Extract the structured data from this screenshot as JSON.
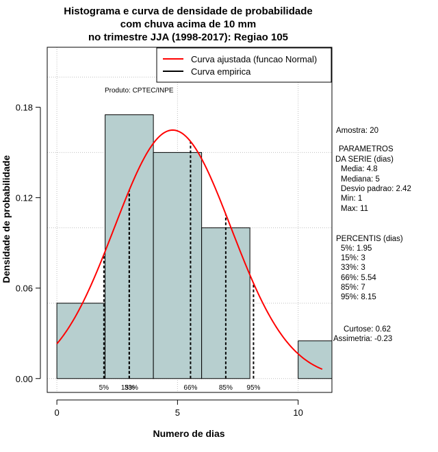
{
  "chart_data": {
    "type": "histogram",
    "title": [
      "Histograma e curva de densidade de probabilidade",
      "com chuva acima de 10 mm",
      "no trimestre JJA (1998-2017): Regiao 105"
    ],
    "xlabel": "Numero de dias",
    "ylabel": "Densidade de probabilidade",
    "xlim": [
      -0.4,
      11.4
    ],
    "ylim": [
      -0.0092,
      0.2198
    ],
    "x_ticks": [
      0,
      5,
      10
    ],
    "y_ticks": [
      0.0,
      0.06,
      0.12,
      0.18
    ],
    "y_tick_labels": [
      "0.00",
      "0.06",
      "0.12",
      "0.18"
    ],
    "grid": true,
    "grid_x": [
      0,
      5,
      10
    ],
    "grid_y": [
      0.0,
      0.05,
      0.1,
      0.15,
      0.2
    ],
    "bars": [
      {
        "x0": 0,
        "x1": 2,
        "density": 0.05
      },
      {
        "x0": 2,
        "x1": 4,
        "density": 0.175
      },
      {
        "x0": 4,
        "x1": 6,
        "density": 0.15
      },
      {
        "x0": 6,
        "x1": 8,
        "density": 0.1
      },
      {
        "x0": 8,
        "x1": 10,
        "density": 0.0
      },
      {
        "x0": 10,
        "x1": 12,
        "density": 0.025
      }
    ],
    "normal_fit": {
      "mean": 4.8,
      "sd": 2.42,
      "x_from": 0,
      "x_to": 11
    },
    "percentile_lines": [
      {
        "label": "5%",
        "x": 1.95
      },
      {
        "label": "15%",
        "x": 3
      },
      {
        "label": "33%",
        "x": 3
      },
      {
        "label": "66%",
        "x": 5.54
      },
      {
        "label": "85%",
        "x": 7
      },
      {
        "label": "95%",
        "x": 8.15
      }
    ],
    "legend": {
      "placement": "top-right",
      "entries": [
        {
          "label": "Curva ajustada (funcao Normal)",
          "color": "#ff0000"
        },
        {
          "label": "Curva empirica",
          "color": "#000000"
        }
      ]
    },
    "annotation": "Produto: CPTEC/INPE",
    "colors": {
      "bar_fill": "#b7cfcf",
      "curve": "#ff0000",
      "grid": "#bdbdbd"
    }
  },
  "side_panel": {
    "amostra": "Amostra: 20",
    "param_title_1": "PARAMETROS",
    "param_title_2": "DA SERIE (dias)",
    "media": "Media: 4.8",
    "mediana": "Mediana: 5",
    "desvio": "Desvio padrao: 2.42",
    "min": "Min: 1",
    "max": "Max: 11",
    "perc_title": "PERCENTIS (dias)",
    "p5": "5%: 1.95",
    "p15": "15%: 3",
    "p33": "33%: 3",
    "p66": "66%: 5.54",
    "p85": "85%: 7",
    "p95": "95%: 8.15",
    "curtose": "Curtose: 0.62",
    "assimetria": "Assimetria: -0.23"
  }
}
